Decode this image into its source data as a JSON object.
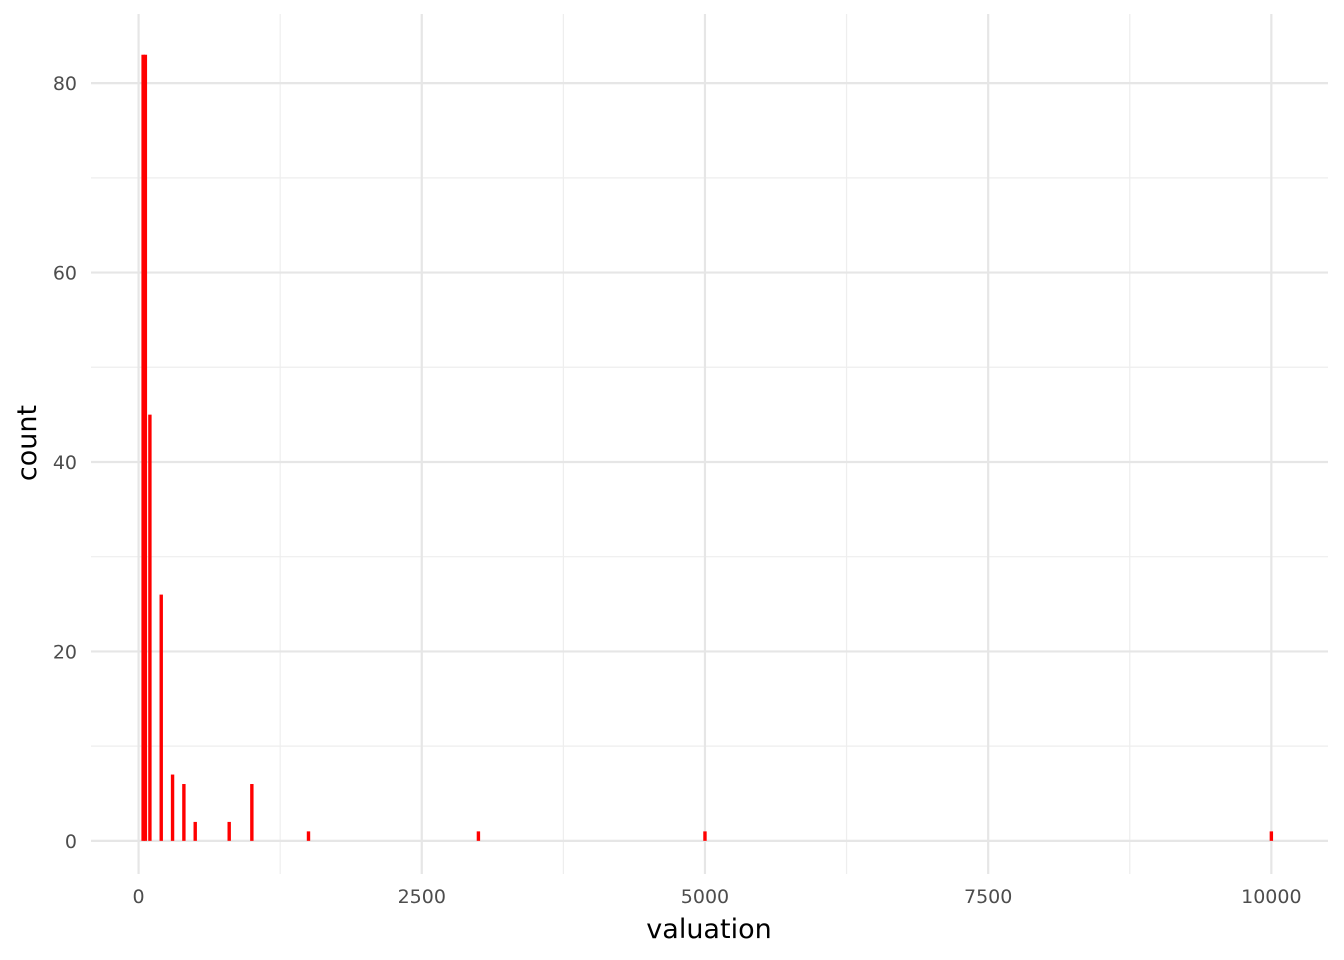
{
  "chart_data": {
    "type": "bar",
    "title": "",
    "xlabel": "valuation",
    "ylabel": "count",
    "xlim": [
      -420,
      10500
    ],
    "ylim": [
      -3.5,
      87.3
    ],
    "x_ticks": [
      0,
      2500,
      5000,
      7500,
      10000
    ],
    "x_tick_labels": [
      "0",
      "2500",
      "5000",
      "7500",
      "10000"
    ],
    "x_minor_ticks": [
      1250,
      3750,
      6250,
      8750
    ],
    "y_ticks": [
      0,
      20,
      40,
      60,
      80
    ],
    "y_tick_labels": [
      "0",
      "20",
      "40",
      "60",
      "80"
    ],
    "y_minor_ticks": [
      10,
      30,
      50,
      70
    ],
    "grid": true,
    "bar_width": 30,
    "bar_color": "#ff0000",
    "bars": [
      {
        "x": 40,
        "count": 83
      },
      {
        "x": 60,
        "count": 83
      },
      {
        "x": 100,
        "count": 45
      },
      {
        "x": 200,
        "count": 26
      },
      {
        "x": 300,
        "count": 7
      },
      {
        "x": 400,
        "count": 6
      },
      {
        "x": 500,
        "count": 2
      },
      {
        "x": 800,
        "count": 2
      },
      {
        "x": 1000,
        "count": 6
      },
      {
        "x": 1500,
        "count": 1
      },
      {
        "x": 3000,
        "count": 1
      },
      {
        "x": 5000,
        "count": 1
      },
      {
        "x": 10000,
        "count": 1
      }
    ]
  }
}
